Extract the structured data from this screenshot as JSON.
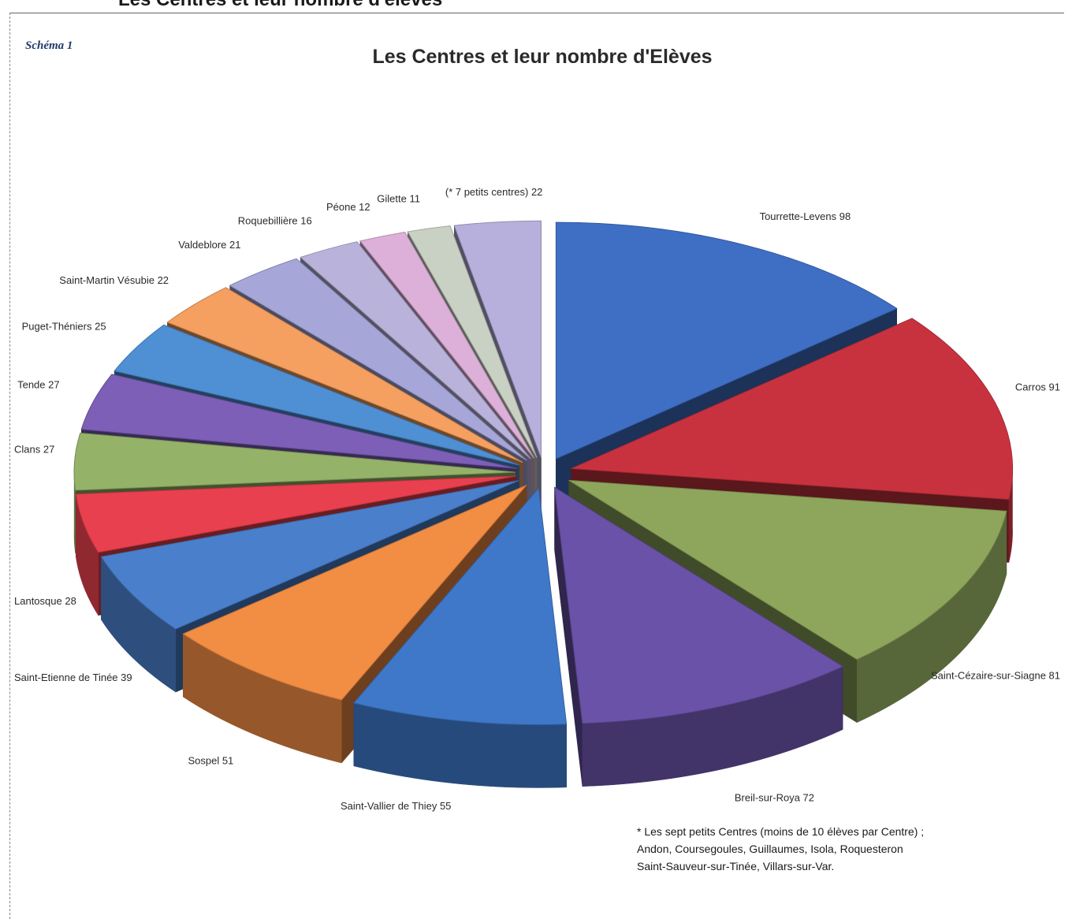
{
  "page": {
    "top_heading": "Les Centres et leur nombre d'élèves",
    "scheme_label": "Schéma 1"
  },
  "chart_data": {
    "type": "pie",
    "title": "Les Centres et leur nombre d'Elèves",
    "three_d": true,
    "exploded": true,
    "legend": "none",
    "labels": [
      "Tourrette-Levens 98",
      "Carros 91",
      "Saint-Cézaire-sur-Siagne 81",
      "Breil-sur-Roya 72",
      "Saint-Vallier de Thiey 55",
      "Sospel 51",
      "Saint-Etienne de Tinée 39",
      "Lantosque 28",
      "Clans 27",
      "Tende 27",
      "Puget-Théniers 25",
      "Saint-Martin Vésubie 22",
      "Valdeblore 21",
      "Roquebillière 16",
      "Péone 12",
      "Gilette 11",
      "(* 7 petits centres) 22"
    ],
    "categories": [
      "Tourrette-Levens",
      "Carros",
      "Saint-Cézaire-sur-Siagne",
      "Breil-sur-Roya",
      "Saint-Vallier de Thiey",
      "Sospel",
      "Saint-Etienne de Tinée",
      "Lantosque",
      "Clans",
      "Tende",
      "Puget-Théniers",
      "Saint-Martin Vésubie",
      "Valdeblore",
      "Roquebillière",
      "Péone",
      "Gilette",
      "(* 7 petits centres)"
    ],
    "values": [
      98,
      91,
      81,
      72,
      55,
      51,
      39,
      28,
      27,
      27,
      25,
      22,
      21,
      16,
      12,
      11,
      22
    ],
    "colors": [
      "#3f6fc4",
      "#c8323f",
      "#8ea65c",
      "#6a52a8",
      "#3f78c8",
      "#f28d44",
      "#4a7fcb",
      "#e8404e",
      "#95b368",
      "#7d5fb8",
      "#4f8fd4",
      "#f5a060",
      "#a6a6d8",
      "#b9b3dc",
      "#dcb0d8",
      "#c9d0c4",
      "#b8b0dc",
      "#aec4ec"
    ]
  },
  "footnote": {
    "line1": "* Les sept petits Centres (moins de 10 élèves par Centre) ;",
    "line2": "Andon, Coursegoules, Guillaumes, Isola, Roquesteron",
    "line3": "Saint-Sauveur-sur-Tinée, Villars-sur-Var."
  }
}
